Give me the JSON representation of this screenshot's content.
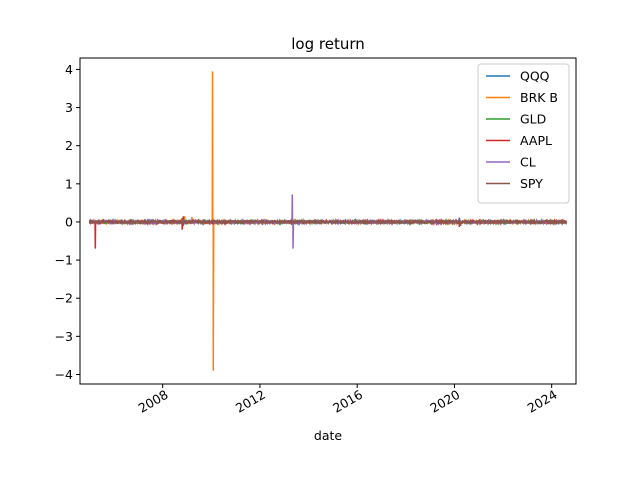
{
  "chart_data": {
    "type": "line",
    "title": "log return",
    "xlabel": "date",
    "ylabel": "",
    "xlim": [
      2004.6,
      2025.0
    ],
    "ylim": [
      -4.25,
      4.3
    ],
    "x_ticks": [
      2008,
      2012,
      2016,
      2020,
      2024
    ],
    "x_tick_labels": [
      "2008",
      "2012",
      "2016",
      "2020",
      "2024"
    ],
    "y_ticks": [
      -4,
      -3,
      -2,
      -1,
      0,
      1,
      2,
      3,
      4
    ],
    "y_tick_labels": [
      "−4",
      "−3",
      "−2",
      "−1",
      "0",
      "1",
      "2",
      "3",
      "4"
    ],
    "grid": false,
    "legend_position": "top-right",
    "series": [
      {
        "name": "QQQ",
        "color": "#1f77b4",
        "x": [
          2005.0,
          2008.8,
          2008.85,
          2020.2,
          2020.25,
          2024.6
        ],
        "y": [
          0.0,
          0.1,
          -0.09,
          0.11,
          -0.1,
          0.0
        ]
      },
      {
        "name": "BRK B",
        "color": "#ff7f0e",
        "x": [
          2005.0,
          2008.9,
          2009.2,
          2010.05,
          2010.08,
          2010.11,
          2011.6,
          2024.6
        ],
        "y": [
          0.0,
          0.15,
          0.13,
          3.95,
          -3.9,
          0.0,
          0.06,
          0.0
        ]
      },
      {
        "name": "GLD",
        "color": "#2ca02c",
        "x": [
          2005.0,
          2011.7,
          2013.3,
          2020.2,
          2024.6
        ],
        "y": [
          0.0,
          0.06,
          -0.08,
          0.05,
          0.0
        ]
      },
      {
        "name": "AAPL",
        "color": "#d62728",
        "x": [
          2005.0,
          2005.2,
          2005.23,
          2005.26,
          2008.8,
          2008.85,
          2020.2,
          2024.6
        ],
        "y": [
          0.0,
          0.0,
          -0.7,
          0.0,
          -0.2,
          0.15,
          -0.13,
          0.0
        ]
      },
      {
        "name": "CL",
        "color": "#9467bd",
        "x": [
          2005.0,
          2013.3,
          2013.33,
          2013.36,
          2024.6
        ],
        "y": [
          0.0,
          0.0,
          0.72,
          -0.7,
          0.0
        ]
      },
      {
        "name": "SPY",
        "color": "#8c564b",
        "x": [
          2005.0,
          2008.8,
          2008.85,
          2020.2,
          2020.25,
          2024.6
        ],
        "y": [
          0.0,
          0.1,
          -0.1,
          0.1,
          -0.1,
          0.0
        ]
      }
    ]
  }
}
